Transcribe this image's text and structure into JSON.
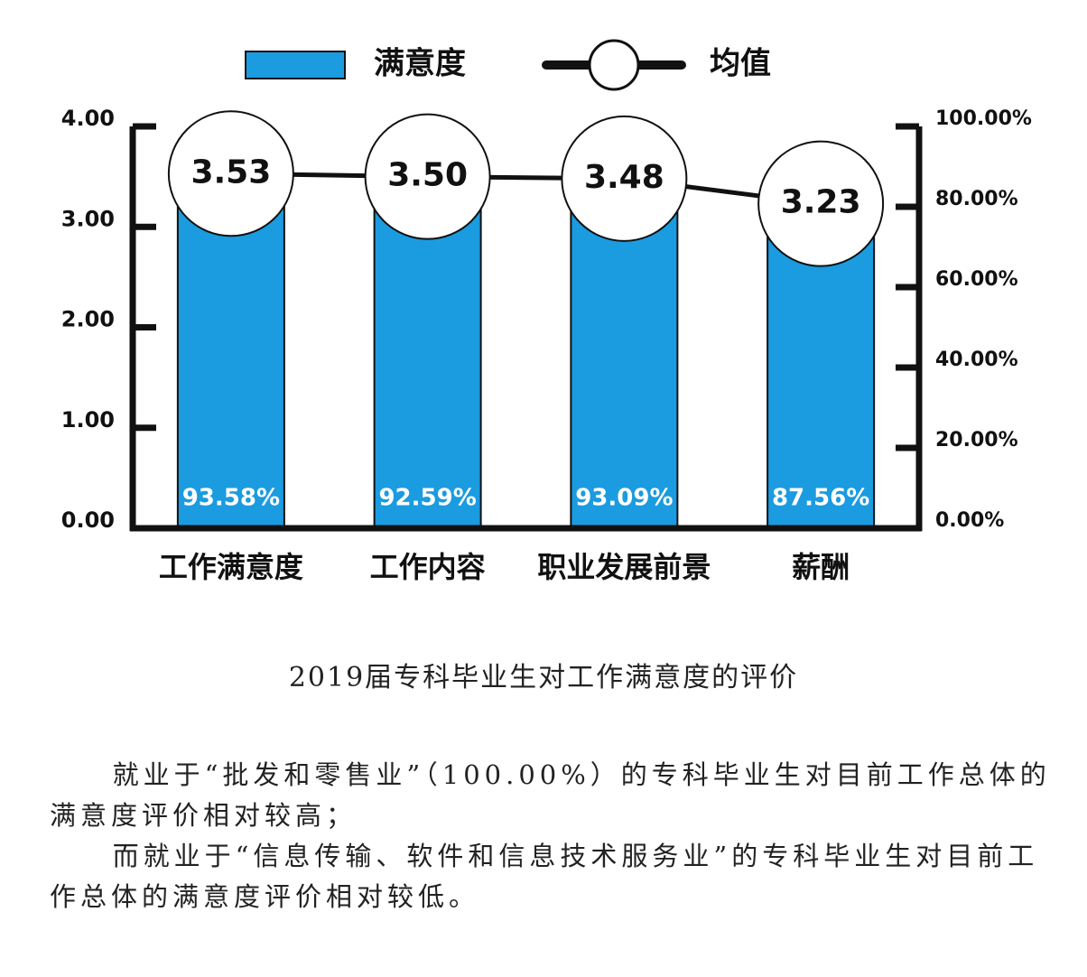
{
  "chart_data": {
    "type": "bar",
    "categories": [
      "工作满意度",
      "工作内容",
      "职业发展前景",
      "薪酬"
    ],
    "series": [
      {
        "name": "满意度",
        "type": "bar",
        "axis": "y2",
        "color": "#1b9be0",
        "values": [
          93.58,
          92.59,
          93.09,
          87.56
        ],
        "value_labels": [
          "93.58%",
          "92.59%",
          "93.09%",
          "87.56%"
        ]
      },
      {
        "name": "均值",
        "type": "line",
        "color": "#111111",
        "values": [
          3.53,
          3.5,
          3.48,
          3.23
        ],
        "value_labels": [
          "3.53",
          "3.50",
          "3.48",
          "3.23"
        ]
      }
    ],
    "ylim": [
      0,
      4
    ],
    "yticks": [
      {
        "value": 0,
        "label": "0.00"
      },
      {
        "value": 1,
        "label": "1.00"
      },
      {
        "value": 2,
        "label": "2.00"
      },
      {
        "value": 3,
        "label": "3.00"
      },
      {
        "value": 4,
        "label": "4.00"
      }
    ],
    "y2lim": [
      0,
      100
    ],
    "y2ticks": [
      {
        "value": 0,
        "label": "0.00%"
      },
      {
        "value": 20,
        "label": "20.00%"
      },
      {
        "value": 40,
        "label": "40.00%"
      },
      {
        "value": 60,
        "label": "60.00%"
      },
      {
        "value": 80,
        "label": "80.00%"
      },
      {
        "value": 100,
        "label": "100.00%"
      }
    ],
    "legend": "top"
  },
  "caption": "2019届专科毕业生对工作满意度的评价",
  "paragraphs": [
    "就业于“批发和零售业”（100.00%）的专科毕业生对目前工作总体的满意度评价相对较高；",
    "而就业于“信息传输、软件和信息技术服务业”的专科毕业生对目前工作总体的满意度评价相对较低。"
  ]
}
